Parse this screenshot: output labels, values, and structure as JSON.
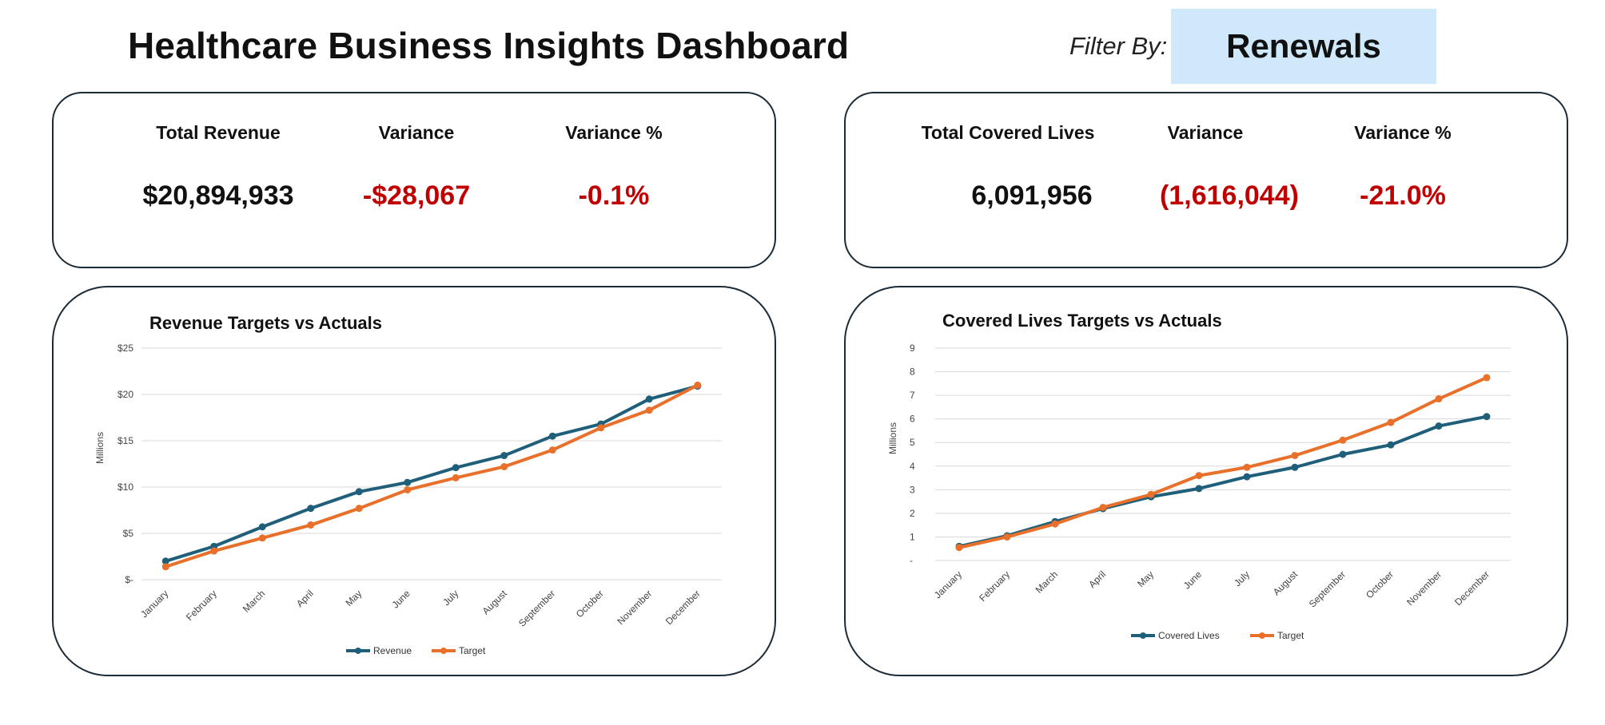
{
  "header": {
    "title": "Healthcare Business Insights Dashboard",
    "filter_label": "Filter By:",
    "filter_value": "Renewals"
  },
  "colors": {
    "revenue_line": "#1f5f7a",
    "target_line": "#e8702a",
    "negative": "#c00000",
    "filter_bg": "#cfe9fb"
  },
  "kpi_revenue": {
    "total_label": "Total Revenue",
    "total_value": "$20,894,933",
    "variance_label": "Variance",
    "variance_value": "-$28,067",
    "variance_pct_label": "Variance %",
    "variance_pct_value": "-0.1%"
  },
  "kpi_lives": {
    "total_label": "Total Covered Lives",
    "total_value": "6,091,956",
    "variance_label": "Variance",
    "variance_value": "(1,616,044)",
    "variance_pct_label": "Variance %",
    "variance_pct_value": "-21.0%"
  },
  "chart_data": [
    {
      "type": "line",
      "title": "Revenue Targets vs Actuals",
      "ylabel": "Millions",
      "xlabel": "",
      "ylim": [
        0,
        25
      ],
      "yticks": [
        0,
        5,
        10,
        15,
        20,
        25
      ],
      "ytick_labels": [
        "$-",
        "$5",
        "$10",
        "$15",
        "$20",
        "$25"
      ],
      "categories": [
        "January",
        "February",
        "March",
        "April",
        "May",
        "June",
        "July",
        "August",
        "September",
        "October",
        "November",
        "December"
      ],
      "series": [
        {
          "name": "Revenue",
          "color": "#1f5f7a",
          "values": [
            2.0,
            3.6,
            5.7,
            7.7,
            9.5,
            10.5,
            12.1,
            13.4,
            15.5,
            16.8,
            19.5,
            20.9
          ]
        },
        {
          "name": "Target",
          "color": "#e8702a",
          "values": [
            1.4,
            3.1,
            4.5,
            5.9,
            7.7,
            9.7,
            11.0,
            12.2,
            14.0,
            16.4,
            18.3,
            21.0
          ]
        }
      ],
      "legend": "bottom",
      "grid": true
    },
    {
      "type": "line",
      "title": "Covered Lives Targets vs Actuals",
      "ylabel": "Millions",
      "xlabel": "",
      "ylim": [
        0,
        9
      ],
      "yticks": [
        0,
        1,
        2,
        3,
        4,
        5,
        6,
        7,
        8,
        9
      ],
      "ytick_labels": [
        "-",
        "1",
        "2",
        "3",
        "4",
        "5",
        "6",
        "7",
        "8",
        "9"
      ],
      "categories": [
        "January",
        "February",
        "March",
        "April",
        "May",
        "June",
        "July",
        "August",
        "September",
        "October",
        "November",
        "December"
      ],
      "series": [
        {
          "name": "Covered Lives",
          "color": "#1f5f7a",
          "values": [
            0.6,
            1.05,
            1.65,
            2.2,
            2.7,
            3.05,
            3.55,
            3.95,
            4.5,
            4.9,
            5.7,
            6.1
          ]
        },
        {
          "name": "Target",
          "color": "#e8702a",
          "values": [
            0.55,
            1.0,
            1.55,
            2.25,
            2.8,
            3.6,
            3.95,
            4.45,
            5.1,
            5.85,
            6.85,
            7.75
          ]
        }
      ],
      "legend": "bottom",
      "grid": true
    }
  ]
}
